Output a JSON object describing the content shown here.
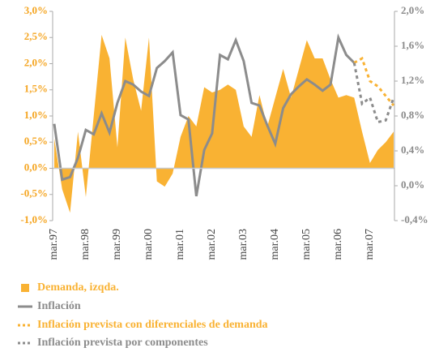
{
  "chart_data": {
    "type": "combo",
    "categories": [
      "mar.97",
      null,
      null,
      null,
      "mar.98",
      null,
      null,
      null,
      "mar.99",
      null,
      null,
      null,
      "mar.00",
      null,
      null,
      null,
      "mar.01",
      null,
      null,
      null,
      "mar.02",
      null,
      null,
      null,
      "mar.03",
      null,
      null,
      null,
      "mar.04",
      null,
      null,
      null,
      "mar.05",
      null,
      null,
      null,
      "mar.06",
      null,
      null,
      null,
      "mar.07",
      null,
      null,
      null
    ],
    "series": [
      {
        "name": "Demanda, izqda.",
        "color": "#f9b233",
        "style": "area",
        "axis": "y",
        "values": [
          0.57,
          -0.4,
          -0.85,
          0.7,
          -0.55,
          1.0,
          2.55,
          2.1,
          0.4,
          2.5,
          1.7,
          1.1,
          2.5,
          -0.25,
          -0.35,
          -0.1,
          0.6,
          1.0,
          0.8,
          1.55,
          1.45,
          1.5,
          1.6,
          1.5,
          0.8,
          0.6,
          1.4,
          0.8,
          1.35,
          1.9,
          1.35,
          1.9,
          2.45,
          2.1,
          2.1,
          1.7,
          1.35,
          1.4,
          1.35,
          0.7,
          0.1,
          0.35,
          0.5,
          0.7
        ]
      },
      {
        "name": "Inflación",
        "color": "#8c8c8c",
        "style": "solid",
        "axis": "y2",
        "values": [
          0.71,
          0.07,
          0.1,
          0.32,
          0.64,
          0.59,
          0.83,
          0.61,
          0.95,
          1.2,
          1.16,
          1.08,
          1.03,
          1.35,
          1.43,
          1.53,
          0.81,
          0.76,
          -0.12,
          0.41,
          0.6,
          1.5,
          1.45,
          1.67,
          1.43,
          0.95,
          0.92,
          0.69,
          0.48,
          0.89,
          1.05,
          1.14,
          1.22,
          1.16,
          1.09,
          1.16,
          1.7,
          1.5,
          1.41,
          null,
          null,
          null,
          null,
          null
        ]
      },
      {
        "name": "Inflación prevista con diferenciales de demanda",
        "color": "#f9b233",
        "style": "dashed",
        "axis": "y2",
        "values": [
          null,
          null,
          null,
          null,
          null,
          null,
          null,
          null,
          null,
          null,
          null,
          null,
          null,
          null,
          null,
          null,
          null,
          null,
          null,
          null,
          null,
          null,
          null,
          null,
          null,
          null,
          null,
          null,
          null,
          null,
          null,
          null,
          null,
          null,
          null,
          null,
          null,
          null,
          1.41,
          1.46,
          1.2,
          1.14,
          1.03,
          0.92
        ]
      },
      {
        "name": "Inflación prevista por componentes",
        "color": "#8c8c8c",
        "style": "dashed",
        "axis": "y2",
        "values": [
          null,
          null,
          null,
          null,
          null,
          null,
          null,
          null,
          null,
          null,
          null,
          null,
          null,
          null,
          null,
          null,
          null,
          null,
          null,
          null,
          null,
          null,
          null,
          null,
          null,
          null,
          null,
          null,
          null,
          null,
          null,
          null,
          null,
          null,
          null,
          null,
          null,
          null,
          1.41,
          0.94,
          1.01,
          0.73,
          0.75,
          1.01
        ]
      }
    ],
    "ylim": [
      -1.0,
      3.0
    ],
    "yticks": [
      {
        "value": -1.0,
        "label": "-1,0%"
      },
      {
        "value": -0.5,
        "label": "-0,5%"
      },
      {
        "value": 0.0,
        "label": "0,0%"
      },
      {
        "value": 0.5,
        "label": "0,5%"
      },
      {
        "value": 1.0,
        "label": "1,0%"
      },
      {
        "value": 1.5,
        "label": "1,5%"
      },
      {
        "value": 2.0,
        "label": "2,0%"
      },
      {
        "value": 2.5,
        "label": "2,5%"
      },
      {
        "value": 3.0,
        "label": "3,0%"
      }
    ],
    "y2lim": [
      -0.4,
      2.0
    ],
    "y2ticks": [
      {
        "value": -0.4,
        "label": "-0,4%"
      },
      {
        "value": 0.0,
        "label": "0,0%"
      },
      {
        "value": 0.4,
        "label": "0,4%"
      },
      {
        "value": 0.8,
        "label": "0,8%"
      },
      {
        "value": 1.2,
        "label": "1,2%"
      },
      {
        "value": 1.6,
        "label": "1,6%"
      },
      {
        "value": 2.0,
        "label": "2,0%"
      }
    ],
    "grid": false
  }
}
